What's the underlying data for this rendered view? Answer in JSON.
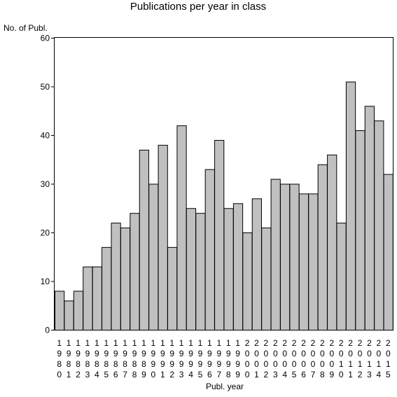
{
  "chart_data": {
    "type": "bar",
    "title": "Publications per year in class",
    "ylabel": "No. of Publ.",
    "xlabel": "Publ. year",
    "ylim": [
      0,
      60
    ],
    "yticks": [
      0,
      10,
      20,
      30,
      40,
      50,
      60
    ],
    "grid": false,
    "bar_color": "#c0c0c0",
    "categories": [
      "1980",
      "1981",
      "1982",
      "1983",
      "1984",
      "1985",
      "1986",
      "1987",
      "1988",
      "1989",
      "1990",
      "1991",
      "1992",
      "1993",
      "1994",
      "1995",
      "1996",
      "1997",
      "1998",
      "1999",
      "2000",
      "2001",
      "2002",
      "2003",
      "2004",
      "2005",
      "2006",
      "2007",
      "2008",
      "2009",
      "2010",
      "2011",
      "2012",
      "2013",
      "2014",
      "2015"
    ],
    "values": [
      8,
      6,
      8,
      13,
      13,
      17,
      22,
      21,
      24,
      37,
      30,
      38,
      17,
      42,
      25,
      24,
      33,
      39,
      25,
      26,
      20,
      27,
      21,
      31,
      30,
      30,
      28,
      28,
      34,
      36,
      22,
      51,
      41,
      46,
      43,
      32
    ]
  }
}
